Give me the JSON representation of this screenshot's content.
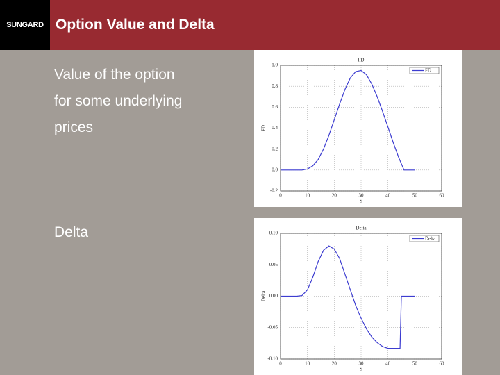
{
  "header": {
    "logo": "SUNGARD",
    "title": "Option Value and Delta"
  },
  "paragraphs": [
    {
      "lines": [
        "Value of the option",
        "for some underlying",
        "prices"
      ]
    },
    {
      "lines": [
        "Delta"
      ]
    }
  ],
  "chart_data": [
    {
      "type": "line",
      "title": "FD",
      "x_label": "S",
      "y_label": "FD",
      "x": [
        0,
        2,
        4,
        6,
        8,
        10,
        12,
        14,
        16,
        18,
        20,
        22,
        24,
        26,
        28,
        30,
        32,
        34,
        36,
        38,
        40,
        42,
        44,
        46,
        48,
        50
      ],
      "series": [
        {
          "name": "FD",
          "color": "#3c3cd0",
          "values": [
            0,
            0,
            0,
            0,
            0,
            0.01,
            0.04,
            0.1,
            0.2,
            0.33,
            0.48,
            0.63,
            0.77,
            0.88,
            0.94,
            0.95,
            0.91,
            0.82,
            0.7,
            0.56,
            0.41,
            0.26,
            0.12,
            0,
            0,
            0
          ]
        }
      ],
      "xlim": [
        0,
        60
      ],
      "xticks": [
        0,
        10,
        20,
        30,
        40,
        50,
        60
      ],
      "ylim": [
        -0.2,
        1.0
      ],
      "yticks": [
        -0.2,
        {
          "value": 0,
          "label": "0.0"
        },
        0.2,
        0.4,
        0.6,
        0.8,
        {
          "value": 1,
          "label": "1.0"
        }
      ],
      "grid": true,
      "legend": "upper right"
    },
    {
      "type": "line",
      "title": "Delta",
      "x_label": "S",
      "y_label": "Delta",
      "x": [
        0,
        2,
        4,
        6,
        8,
        10,
        12,
        14,
        16,
        18,
        20,
        22,
        24,
        26,
        28,
        30,
        32,
        34,
        36,
        38,
        40,
        42,
        44,
        44.5,
        45,
        46,
        48,
        50
      ],
      "series": [
        {
          "name": "Delta",
          "color": "#3c3cd0",
          "values": [
            0,
            0,
            0,
            0,
            0.001,
            0.01,
            0.03,
            0.055,
            0.073,
            0.08,
            0.075,
            0.06,
            0.035,
            0.01,
            -0.015,
            -0.035,
            -0.052,
            -0.065,
            -0.074,
            -0.08,
            -0.083,
            -0.083,
            -0.083,
            -0.083,
            0,
            0,
            0,
            0
          ]
        }
      ],
      "xlim": [
        0,
        60
      ],
      "xticks": [
        0,
        10,
        20,
        30,
        40,
        50,
        60
      ],
      "ylim": [
        -0.1,
        0.1
      ],
      "yticks": [
        {
          "value": -0.1,
          "label": "-0.10"
        },
        {
          "value": -0.05,
          "label": "-0.05"
        },
        {
          "value": 0,
          "label": "0.00"
        },
        {
          "value": 0.05,
          "label": "0.05"
        },
        {
          "value": 0.1,
          "label": "0.10"
        }
      ],
      "grid": true,
      "legend": "upper right"
    }
  ]
}
